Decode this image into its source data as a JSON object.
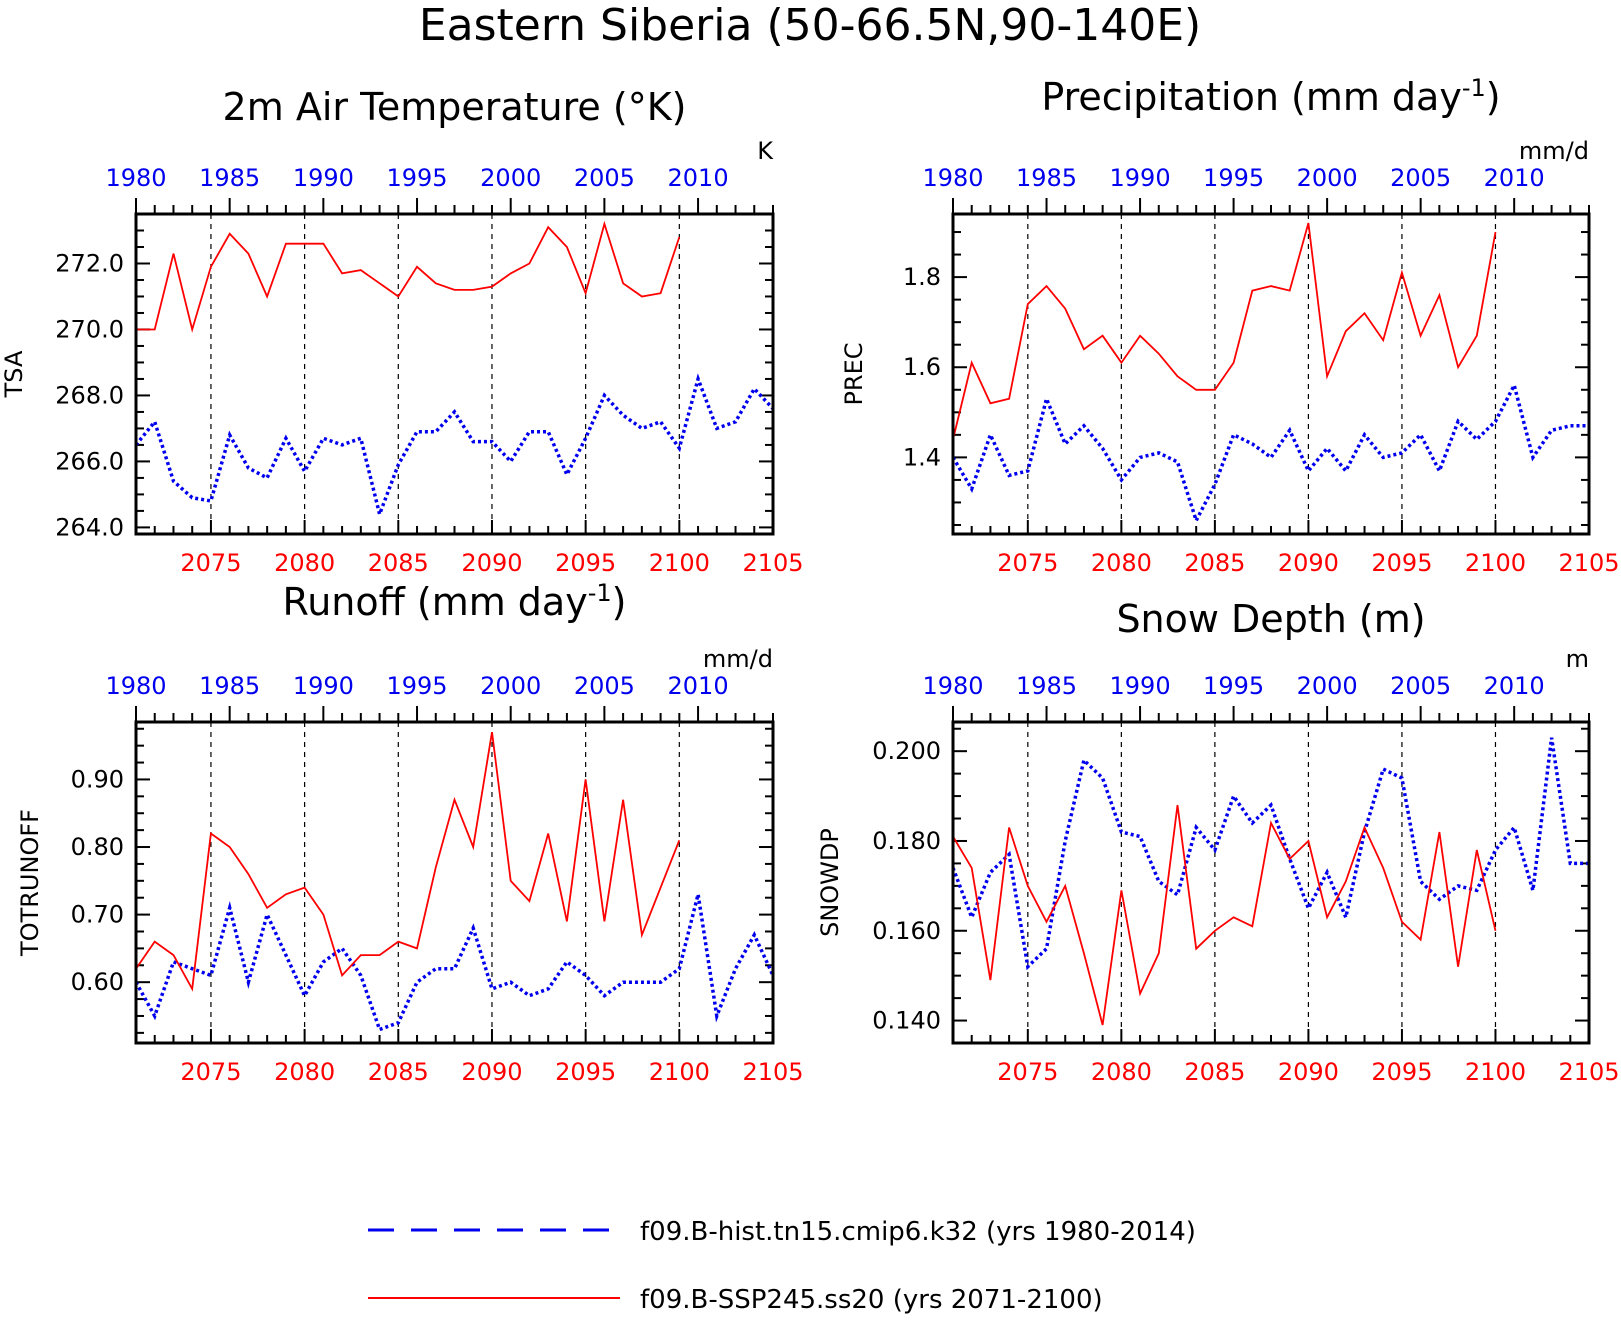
{
  "title": "Eastern Siberia (50-66.5N,90-140E)",
  "colors": {
    "future": "#ff0000",
    "hist": "#0000ee",
    "axis": "#000000"
  },
  "legend": {
    "hist_label": "f09.B-hist.tn15.cmip6.k32 (yrs 1980-2014)",
    "future_label": "f09.B-SSP245.ss20 (yrs 2071-2100)"
  },
  "chart_data": [
    {
      "type": "line",
      "title": "2m Air Temperature (°K)",
      "ylabel": "TSA",
      "units": "K",
      "ylim": [
        263.8,
        273.5
      ],
      "yticks": [
        264,
        266,
        268,
        270,
        272
      ],
      "ytick_labels": [
        "264.0",
        "266.0",
        "268.0",
        "270.0",
        "272.0"
      ],
      "top_axis": {
        "range": [
          1980,
          2014
        ],
        "ticks": [
          1980,
          1985,
          1990,
          1995,
          2000,
          2005,
          2010
        ],
        "labels": [
          "1980",
          "1985",
          "1990",
          "1995",
          "2000",
          "2005",
          "2010"
        ]
      },
      "bottom_axis": {
        "range": [
          2071,
          2105
        ],
        "ticks": [
          2075,
          2080,
          2085,
          2090,
          2095,
          2100,
          2105
        ],
        "labels": [
          "2075",
          "2080",
          "2085",
          "2090",
          "2095",
          "2100",
          "2105"
        ]
      },
      "grid_lines": [
        2075,
        2080,
        2085,
        2090,
        2095,
        2100
      ],
      "series": [
        {
          "style": "hist",
          "x": [
            1980,
            1981,
            1982,
            1983,
            1984,
            1985,
            1986,
            1987,
            1988,
            1989,
            1990,
            1991,
            1992,
            1993,
            1994,
            1995,
            1996,
            1997,
            1998,
            1999,
            2000,
            2001,
            2002,
            2003,
            2004,
            2005,
            2006,
            2007,
            2008,
            2009,
            2010,
            2011,
            2012,
            2013,
            2014
          ],
          "values": [
            266.5,
            267.2,
            265.4,
            264.9,
            264.8,
            266.8,
            265.8,
            265.5,
            266.7,
            265.7,
            266.7,
            266.5,
            266.7,
            264.4,
            265.9,
            266.9,
            266.9,
            267.5,
            266.6,
            266.6,
            266.0,
            266.9,
            266.9,
            265.6,
            266.7,
            268.0,
            267.4,
            267.0,
            267.2,
            266.4,
            268.5,
            267.0,
            267.2,
            268.2,
            267.6
          ]
        },
        {
          "style": "future",
          "x": [
            2071,
            2072,
            2073,
            2074,
            2075,
            2076,
            2077,
            2078,
            2079,
            2080,
            2081,
            2082,
            2083,
            2084,
            2085,
            2086,
            2087,
            2088,
            2089,
            2090,
            2091,
            2092,
            2093,
            2094,
            2095,
            2096,
            2097,
            2098,
            2099,
            2100
          ],
          "values": [
            270.0,
            270.0,
            272.3,
            270.0,
            271.9,
            272.9,
            272.3,
            271.0,
            272.6,
            272.6,
            272.6,
            271.7,
            271.8,
            271.4,
            271.0,
            271.9,
            271.4,
            271.2,
            271.2,
            271.3,
            271.7,
            272.0,
            273.1,
            272.5,
            271.1,
            273.2,
            271.4,
            271.0,
            271.1,
            272.8
          ]
        }
      ]
    },
    {
      "type": "line",
      "title": "Precipitation (mm day",
      "title_sup": "-1",
      "title_end": ")",
      "ylabel": "PREC",
      "units": "mm/d",
      "ylim": [
        1.23,
        1.94
      ],
      "yticks": [
        1.4,
        1.6,
        1.8
      ],
      "ytick_labels": [
        "1.4",
        "1.6",
        "1.8"
      ],
      "top_axis": {
        "range": [
          1980,
          2014
        ],
        "ticks": [
          1980,
          1985,
          1990,
          1995,
          2000,
          2005,
          2010
        ],
        "labels": [
          "1980",
          "1985",
          "1990",
          "1995",
          "2000",
          "2005",
          "2010"
        ]
      },
      "bottom_axis": {
        "range": [
          2071,
          2105
        ],
        "ticks": [
          2075,
          2080,
          2085,
          2090,
          2095,
          2100,
          2105
        ],
        "labels": [
          "2075",
          "2080",
          "2085",
          "2090",
          "2095",
          "2100",
          "2105"
        ]
      },
      "grid_lines": [
        2075,
        2080,
        2085,
        2090,
        2095,
        2100
      ],
      "series": [
        {
          "style": "hist",
          "x": [
            1980,
            1981,
            1982,
            1983,
            1984,
            1985,
            1986,
            1987,
            1988,
            1989,
            1990,
            1991,
            1992,
            1993,
            1994,
            1995,
            1996,
            1997,
            1998,
            1999,
            2000,
            2001,
            2002,
            2003,
            2004,
            2005,
            2006,
            2007,
            2008,
            2009,
            2010,
            2011,
            2012,
            2013,
            2014
          ],
          "values": [
            1.4,
            1.33,
            1.45,
            1.36,
            1.37,
            1.53,
            1.43,
            1.47,
            1.42,
            1.35,
            1.4,
            1.41,
            1.39,
            1.26,
            1.34,
            1.45,
            1.43,
            1.4,
            1.46,
            1.37,
            1.42,
            1.37,
            1.45,
            1.4,
            1.41,
            1.45,
            1.37,
            1.48,
            1.44,
            1.48,
            1.56,
            1.4,
            1.46,
            1.47,
            1.47
          ]
        },
        {
          "style": "future",
          "x": [
            2071,
            2072,
            2073,
            2074,
            2075,
            2076,
            2077,
            2078,
            2079,
            2080,
            2081,
            2082,
            2083,
            2084,
            2085,
            2086,
            2087,
            2088,
            2089,
            2090,
            2091,
            2092,
            2093,
            2094,
            2095,
            2096,
            2097,
            2098,
            2099,
            2100
          ],
          "values": [
            1.44,
            1.61,
            1.52,
            1.53,
            1.74,
            1.78,
            1.73,
            1.64,
            1.67,
            1.61,
            1.67,
            1.63,
            1.58,
            1.55,
            1.55,
            1.61,
            1.77,
            1.78,
            1.77,
            1.92,
            1.58,
            1.68,
            1.72,
            1.66,
            1.81,
            1.67,
            1.76,
            1.6,
            1.67,
            1.9
          ]
        }
      ]
    },
    {
      "type": "line",
      "title": "Runoff (mm day",
      "title_sup": "-1",
      "title_end": ")",
      "ylabel": "TOTRUNOFF",
      "units": "mm/d",
      "ylim": [
        0.51,
        0.985
      ],
      "yticks": [
        0.6,
        0.7,
        0.8,
        0.9
      ],
      "ytick_labels": [
        "0.60",
        "0.70",
        "0.80",
        "0.90"
      ],
      "top_axis": {
        "range": [
          1980,
          2014
        ],
        "ticks": [
          1980,
          1985,
          1990,
          1995,
          2000,
          2005,
          2010
        ],
        "labels": [
          "1980",
          "1985",
          "1990",
          "1995",
          "2000",
          "2005",
          "2010"
        ]
      },
      "bottom_axis": {
        "range": [
          2071,
          2105
        ],
        "ticks": [
          2075,
          2080,
          2085,
          2090,
          2095,
          2100,
          2105
        ],
        "labels": [
          "2075",
          "2080",
          "2085",
          "2090",
          "2095",
          "2100",
          "2105"
        ]
      },
      "grid_lines": [
        2075,
        2080,
        2085,
        2090,
        2095,
        2100
      ],
      "series": [
        {
          "style": "hist",
          "x": [
            1980,
            1981,
            1982,
            1983,
            1984,
            1985,
            1986,
            1987,
            1988,
            1989,
            1990,
            1991,
            1992,
            1993,
            1994,
            1995,
            1996,
            1997,
            1998,
            1999,
            2000,
            2001,
            2002,
            2003,
            2004,
            2005,
            2006,
            2007,
            2008,
            2009,
            2010,
            2011,
            2012,
            2013,
            2014
          ],
          "values": [
            0.6,
            0.55,
            0.63,
            0.62,
            0.61,
            0.71,
            0.6,
            0.7,
            0.64,
            0.58,
            0.63,
            0.65,
            0.61,
            0.53,
            0.54,
            0.6,
            0.62,
            0.62,
            0.68,
            0.59,
            0.6,
            0.58,
            0.59,
            0.63,
            0.61,
            0.58,
            0.6,
            0.6,
            0.6,
            0.62,
            0.73,
            0.55,
            0.62,
            0.67,
            0.61
          ]
        },
        {
          "style": "future",
          "x": [
            2071,
            2072,
            2073,
            2074,
            2075,
            2076,
            2077,
            2078,
            2079,
            2080,
            2081,
            2082,
            2083,
            2084,
            2085,
            2086,
            2087,
            2088,
            2089,
            2090,
            2091,
            2092,
            2093,
            2094,
            2095,
            2096,
            2097,
            2098,
            2099,
            2100
          ],
          "values": [
            0.62,
            0.66,
            0.64,
            0.59,
            0.82,
            0.8,
            0.76,
            0.71,
            0.73,
            0.74,
            0.7,
            0.61,
            0.64,
            0.64,
            0.66,
            0.65,
            0.77,
            0.87,
            0.8,
            0.97,
            0.75,
            0.72,
            0.82,
            0.69,
            0.9,
            0.69,
            0.87,
            0.67,
            0.74,
            0.81
          ]
        }
      ]
    },
    {
      "type": "line",
      "title": "Snow Depth (m)",
      "ylabel": "SNOWDP",
      "units": "m",
      "ylim": [
        0.135,
        0.2065
      ],
      "yticks": [
        0.14,
        0.16,
        0.18,
        0.2
      ],
      "ytick_labels": [
        "0.140",
        "0.160",
        "0.180",
        "0.200"
      ],
      "top_axis": {
        "range": [
          1980,
          2014
        ],
        "ticks": [
          1980,
          1985,
          1990,
          1995,
          2000,
          2005,
          2010
        ],
        "labels": [
          "1980",
          "1985",
          "1990",
          "1995",
          "2000",
          "2005",
          "2010"
        ]
      },
      "bottom_axis": {
        "range": [
          2071,
          2105
        ],
        "ticks": [
          2075,
          2080,
          2085,
          2090,
          2095,
          2100,
          2105
        ],
        "labels": [
          "2075",
          "2080",
          "2085",
          "2090",
          "2095",
          "2100",
          "2105"
        ]
      },
      "grid_lines": [
        2075,
        2080,
        2085,
        2090,
        2095,
        2100
      ],
      "series": [
        {
          "style": "hist",
          "x": [
            1980,
            1981,
            1982,
            1983,
            1984,
            1985,
            1986,
            1987,
            1988,
            1989,
            1990,
            1991,
            1992,
            1993,
            1994,
            1995,
            1996,
            1997,
            1998,
            1999,
            2000,
            2001,
            2002,
            2003,
            2004,
            2005,
            2006,
            2007,
            2008,
            2009,
            2010,
            2011,
            2012,
            2013,
            2014
          ],
          "values": [
            0.174,
            0.163,
            0.173,
            0.177,
            0.152,
            0.156,
            0.18,
            0.198,
            0.194,
            0.182,
            0.181,
            0.171,
            0.168,
            0.183,
            0.178,
            0.19,
            0.184,
            0.188,
            0.176,
            0.165,
            0.173,
            0.163,
            0.182,
            0.196,
            0.194,
            0.171,
            0.167,
            0.17,
            0.169,
            0.178,
            0.183,
            0.169,
            0.203,
            0.175,
            0.175
          ]
        },
        {
          "style": "future",
          "x": [
            2071,
            2072,
            2073,
            2074,
            2075,
            2076,
            2077,
            2078,
            2079,
            2080,
            2081,
            2082,
            2083,
            2084,
            2085,
            2086,
            2087,
            2088,
            2089,
            2090,
            2091,
            2092,
            2093,
            2094,
            2095,
            2096,
            2097,
            2098,
            2099,
            2100
          ],
          "values": [
            0.181,
            0.174,
            0.149,
            0.183,
            0.17,
            0.162,
            0.17,
            0.155,
            0.139,
            0.169,
            0.146,
            0.155,
            0.188,
            0.156,
            0.16,
            0.163,
            0.161,
            0.184,
            0.176,
            0.18,
            0.163,
            0.171,
            0.183,
            0.174,
            0.162,
            0.158,
            0.182,
            0.152,
            0.178,
            0.16
          ]
        }
      ]
    }
  ]
}
